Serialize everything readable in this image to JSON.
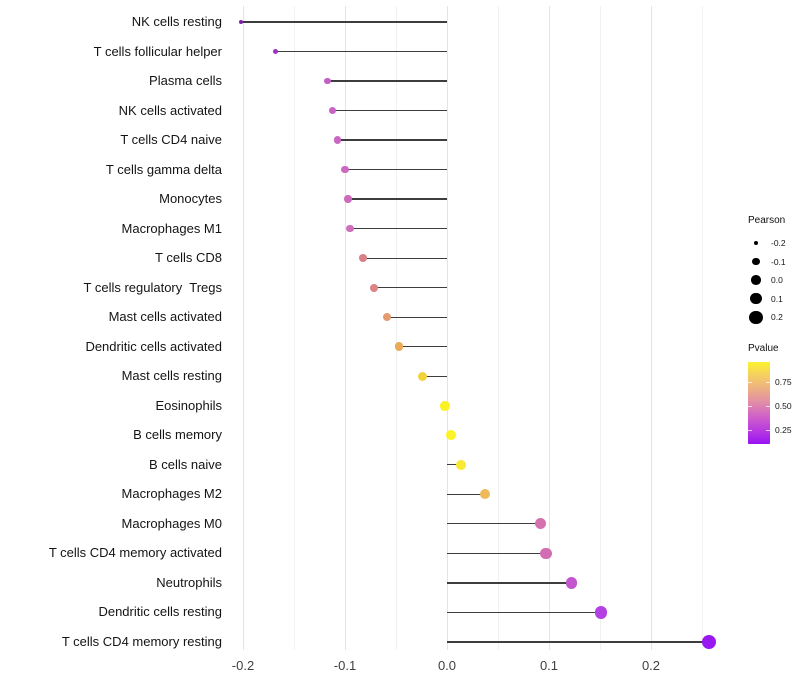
{
  "chart_data": {
    "type": "lollipop",
    "orientation": "horizontal",
    "title": "",
    "xlabel": "",
    "ylabel": "",
    "xlim": [
      -0.225,
      0.28
    ],
    "grid": "vertical-only",
    "x_ticks": [
      -0.2,
      -0.1,
      0.0,
      0.1,
      0.2
    ],
    "x_tick_labels": [
      "-0.2",
      "-0.1",
      "0.0",
      "0.1",
      "0.2"
    ],
    "x_minor_ticks": [
      -0.15,
      -0.05,
      0.05,
      0.15,
      0.25
    ],
    "points": [
      {
        "label": "NK cells resting",
        "pearson": -0.202,
        "pvalue_approx": 0.13,
        "color": "#7E22AA"
      },
      {
        "label": "T cells follicular helper",
        "pearson": -0.168,
        "pvalue_approx": 0.19,
        "color": "#9D33C4"
      },
      {
        "label": "Plasma cells",
        "pearson": -0.117,
        "pvalue_approx": 0.3,
        "color": "#C45FC6"
      },
      {
        "label": "NK cells activated",
        "pearson": -0.112,
        "pvalue_approx": 0.31,
        "color": "#C763C4"
      },
      {
        "label": "T cells CD4 naive",
        "pearson": -0.107,
        "pvalue_approx": 0.32,
        "color": "#C966C3"
      },
      {
        "label": "T cells gamma delta",
        "pearson": -0.1,
        "pvalue_approx": 0.33,
        "color": "#CB69C1"
      },
      {
        "label": "Monocytes",
        "pearson": -0.097,
        "pvalue_approx": 0.34,
        "color": "#CD6CBE"
      },
      {
        "label": "Macrophages M1",
        "pearson": -0.095,
        "pvalue_approx": 0.35,
        "color": "#CE6FBC"
      },
      {
        "label": "T cells CD8",
        "pearson": -0.082,
        "pvalue_approx": 0.46,
        "color": "#D98089"
      },
      {
        "label": "T cells regulatory  Tregs",
        "pearson": -0.072,
        "pvalue_approx": 0.48,
        "color": "#DB8485"
      },
      {
        "label": "Mast cells activated",
        "pearson": -0.059,
        "pvalue_approx": 0.58,
        "color": "#E49B6E"
      },
      {
        "label": "Dendritic cells activated",
        "pearson": -0.047,
        "pvalue_approx": 0.64,
        "color": "#EAAA58"
      },
      {
        "label": "Mast cells resting",
        "pearson": -0.024,
        "pvalue_approx": 0.81,
        "color": "#F1D33D"
      },
      {
        "label": "Eosinophils",
        "pearson": -0.002,
        "pvalue_approx": 0.96,
        "color": "#FBF226"
      },
      {
        "label": "B cells memory",
        "pearson": 0.004,
        "pvalue_approx": 0.95,
        "color": "#FBF228"
      },
      {
        "label": "B cells naive",
        "pearson": 0.014,
        "pvalue_approx": 0.9,
        "color": "#F9E935"
      },
      {
        "label": "Macrophages M2",
        "pearson": 0.037,
        "pvalue_approx": 0.68,
        "color": "#EFBA59"
      },
      {
        "label": "Macrophages M0",
        "pearson": 0.092,
        "pvalue_approx": 0.36,
        "color": "#D571AE"
      },
      {
        "label": "T cells CD4 memory activated",
        "pearson": 0.097,
        "pvalue_approx": 0.34,
        "color": "#D26DB4"
      },
      {
        "label": "Neutrophils",
        "pearson": 0.122,
        "pvalue_approx": 0.26,
        "color": "#C355CE"
      },
      {
        "label": "Dendritic cells resting",
        "pearson": 0.151,
        "pvalue_approx": 0.19,
        "color": "#B240E2"
      },
      {
        "label": "T cells CD4 memory resting",
        "pearson": 0.257,
        "pvalue_approx": 0.11,
        "color": "#9917F0"
      }
    ],
    "legend_size": {
      "title": "Pearson",
      "entries": [
        {
          "label": "-0.2",
          "value": -0.2
        },
        {
          "label": "-0.1",
          "value": -0.1
        },
        {
          "label": "0.0",
          "value": 0.0
        },
        {
          "label": "0.1",
          "value": 0.1
        },
        {
          "label": "0.2",
          "value": 0.2
        }
      ],
      "dot_color": "#000000"
    },
    "legend_color": {
      "title": "Pvalue",
      "tick_labels": [
        "0.75",
        "0.50",
        "0.25"
      ],
      "gradient_bottom_to_top": [
        "#9912F2",
        "#B83BE0",
        "#D060C9",
        "#E18BA8",
        "#ECAE85",
        "#F5CE62",
        "#FBF22C"
      ],
      "range_bottom": 0.1,
      "range_top": 0.96
    },
    "colors": {
      "background": "#ffffff",
      "stem": "#3d3d3d",
      "grid_major": "#e4e4e4",
      "grid_minor": "#f1f1f1",
      "axis_text": "#3f3f3f",
      "label_text": "#141414"
    }
  }
}
